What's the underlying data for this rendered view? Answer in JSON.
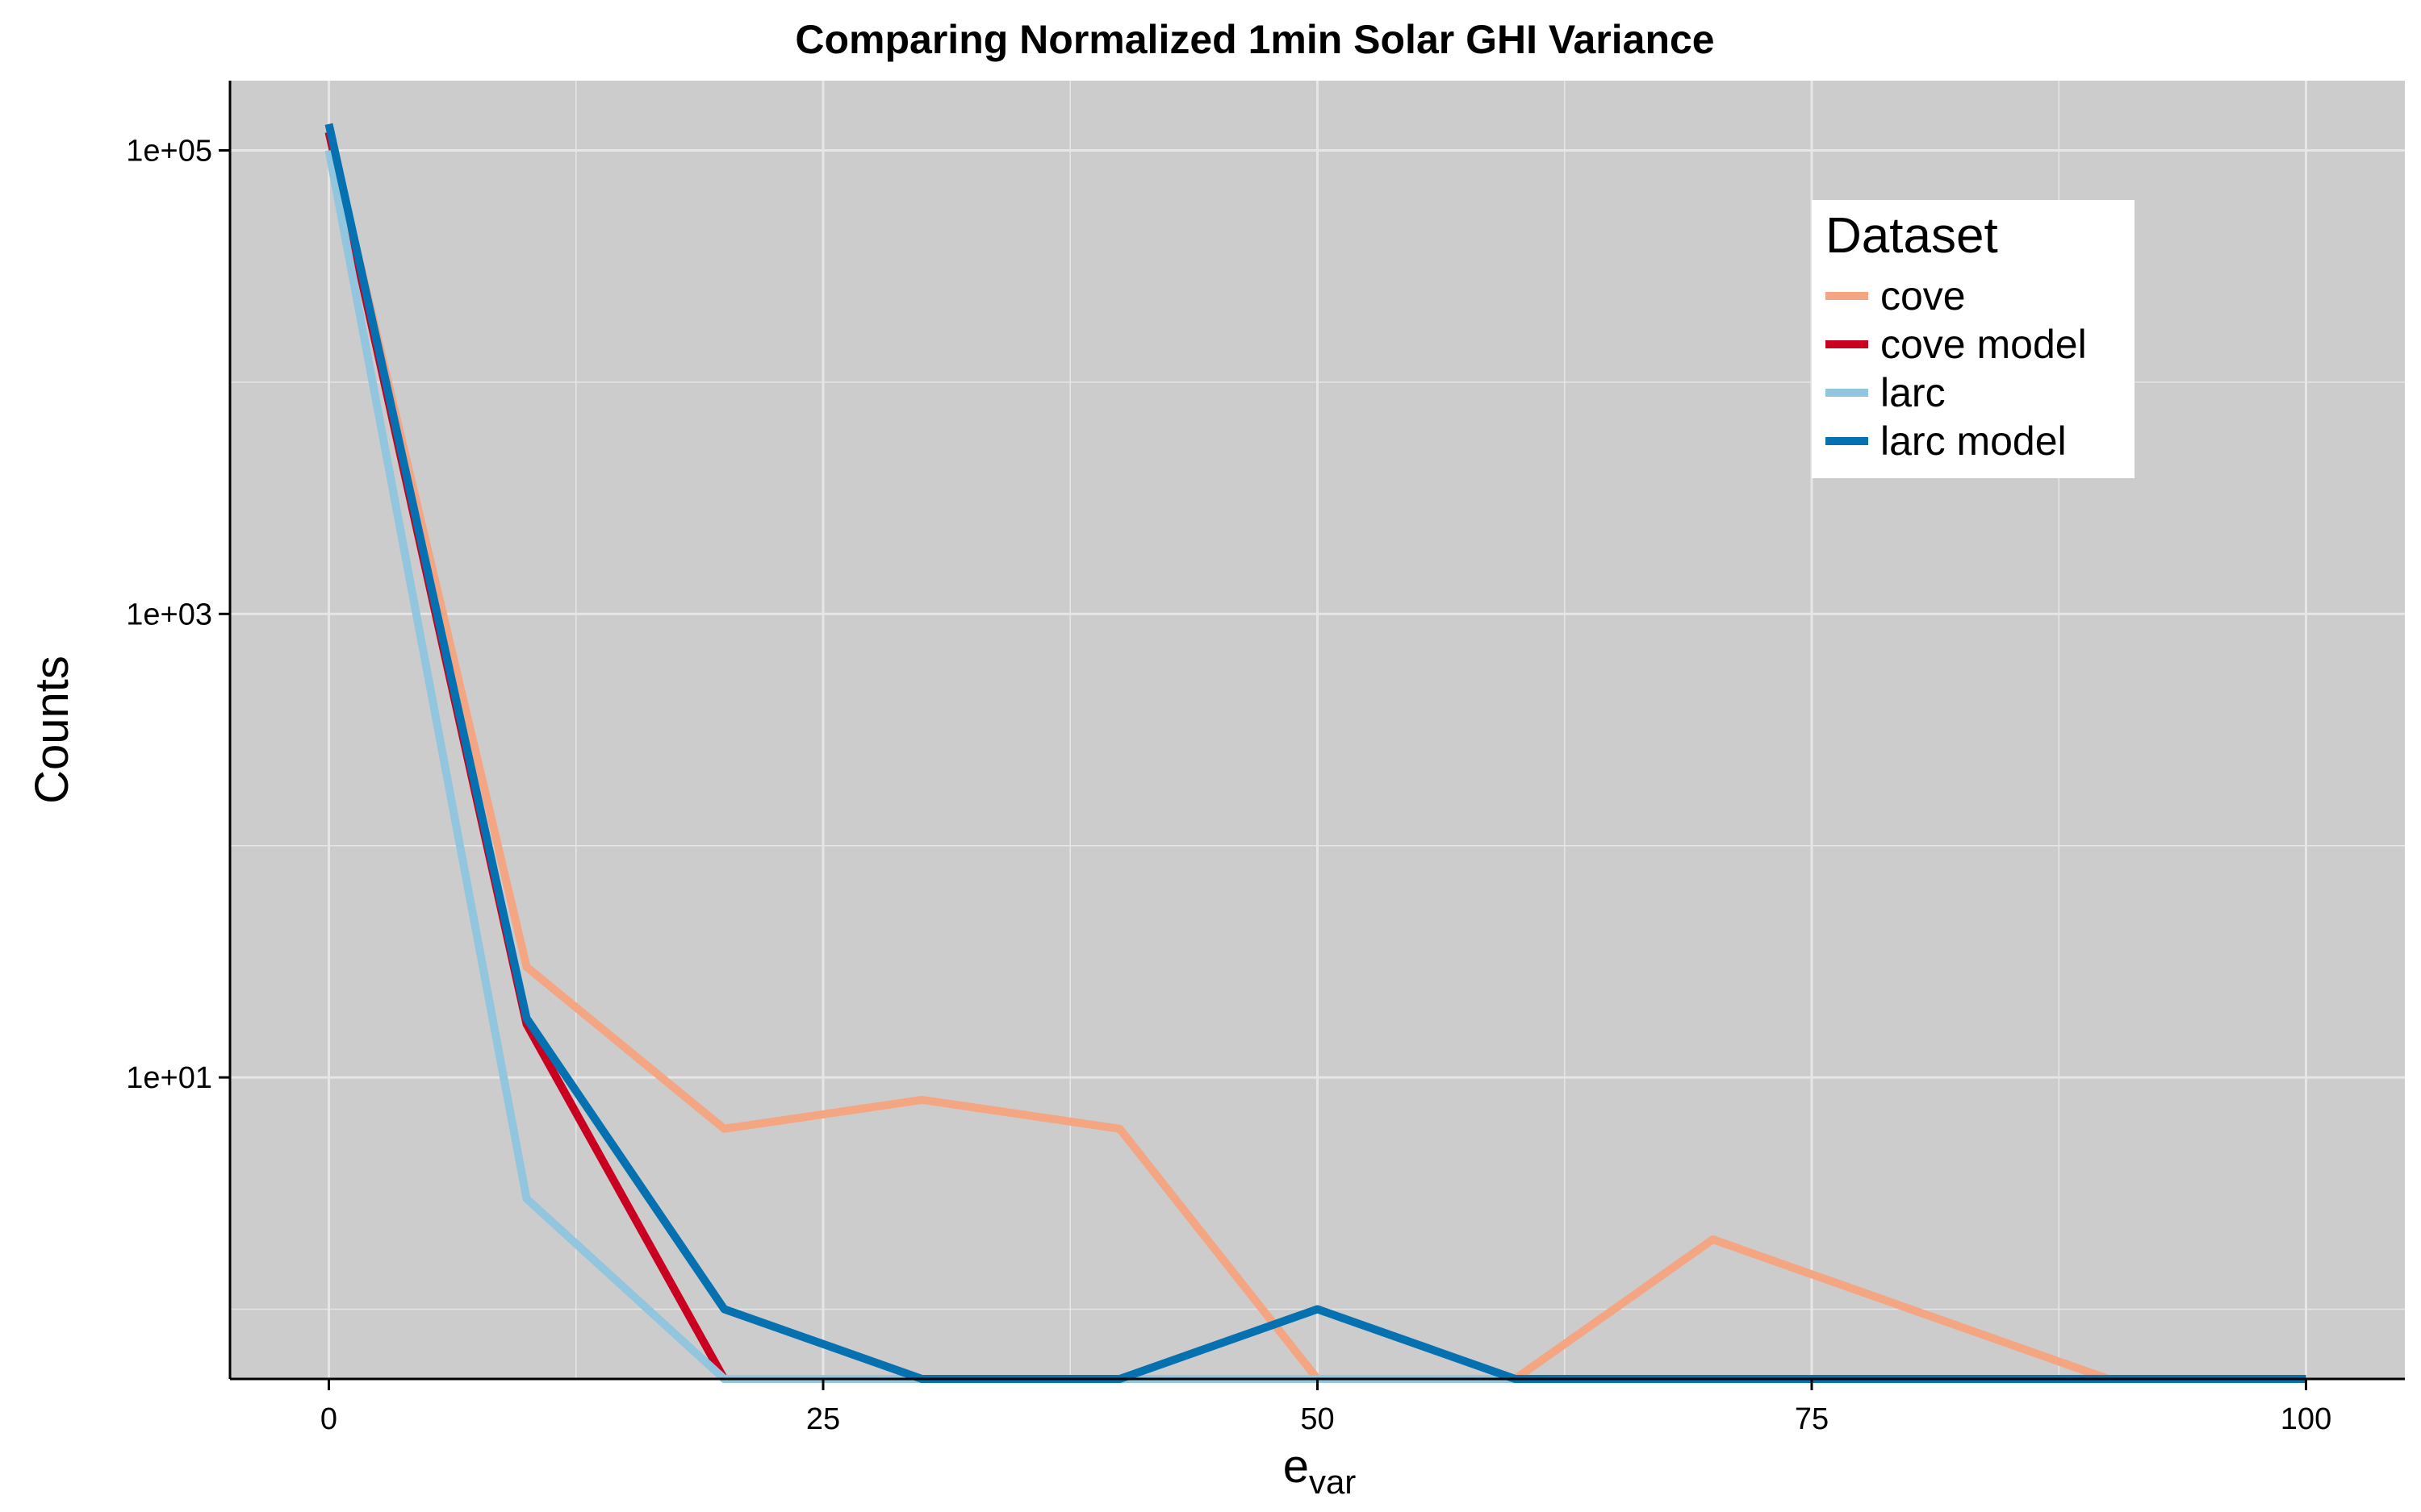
{
  "chart_data": {
    "type": "line",
    "title": "Comparing Normalized 1min Solar GHI Variance",
    "xlabel_main": "e",
    "xlabel_sub": "var",
    "ylabel": "Counts",
    "y_scale": "log10",
    "xlim": [
      -5,
      105
    ],
    "ylim": [
      0.5,
      200000
    ],
    "x_ticks": [
      0,
      25,
      50,
      75,
      100
    ],
    "x_tick_labels": [
      "0",
      "25",
      "50",
      "75",
      "100"
    ],
    "y_ticks": [
      10,
      1000,
      100000
    ],
    "y_tick_labels": [
      "1e+01",
      "1e+03",
      "1e+05"
    ],
    "grid": true,
    "background": "#cccccc",
    "grid_color": "#e6e6e6",
    "legend": {
      "title": "Dataset",
      "position": "top-right"
    },
    "x": [
      0,
      10,
      20,
      30,
      40,
      50,
      60,
      70,
      80,
      90,
      100
    ],
    "series": [
      {
        "name": "cove",
        "color": "#f4a582",
        "values": [
          120000,
          30,
          6,
          8,
          6,
          0.5,
          0.5,
          2,
          1,
          0.5,
          0.5
        ]
      },
      {
        "name": "cove model",
        "color": "#ca0020",
        "values": [
          120000,
          17,
          0.5,
          0.5,
          0.5,
          0.5,
          0.5,
          0.5,
          0.5,
          0.5,
          0.5
        ]
      },
      {
        "name": "larc",
        "color": "#92c5de",
        "values": [
          100000,
          3,
          0.5,
          0.5,
          0.5,
          0.5,
          0.5,
          0.5,
          0.5,
          0.5,
          0.5
        ]
      },
      {
        "name": "larc model",
        "color": "#0571b0",
        "values": [
          130000,
          18,
          1,
          0.5,
          0.5,
          1,
          0.5,
          0.5,
          0.5,
          0.5,
          0.5
        ]
      }
    ]
  }
}
